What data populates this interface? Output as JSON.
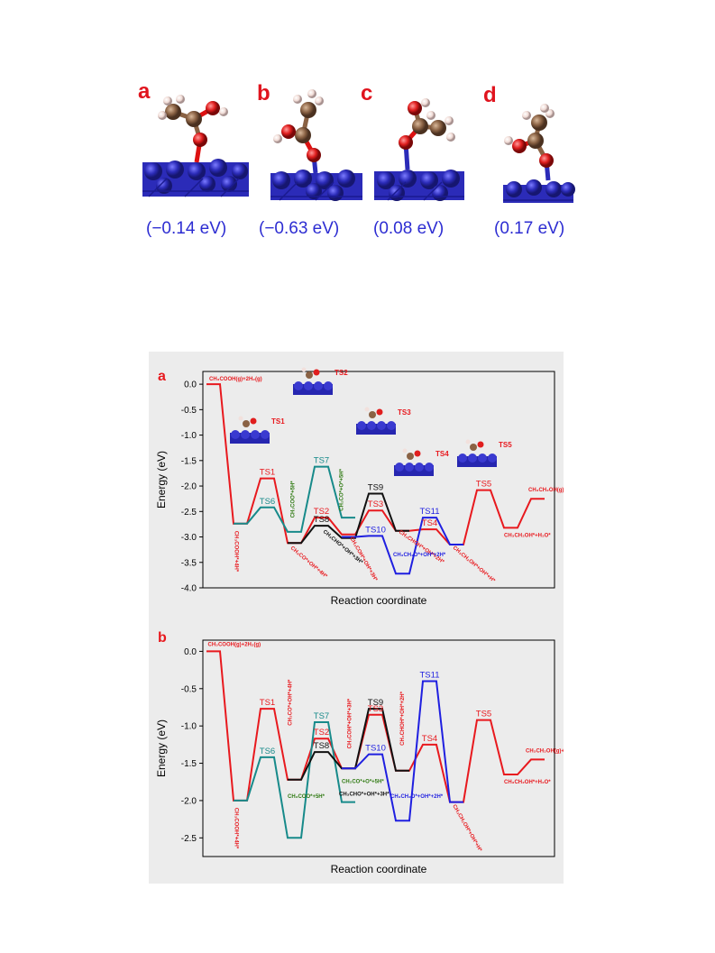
{
  "top_panels": [
    {
      "letter": "a",
      "energy": "(−0.14 eV)"
    },
    {
      "letter": "b",
      "energy": "(−0.63 eV)"
    },
    {
      "letter": "c",
      "energy": "(0.08 eV)"
    },
    {
      "letter": "d",
      "energy": "(0.17 eV)"
    }
  ],
  "colors": {
    "red": "#e8191e",
    "teal": "#178a8a",
    "black": "#111111",
    "blue": "#1f1fe0",
    "green": "#2f7a12",
    "bg": "#ececec"
  },
  "chart_data": [
    {
      "panel": "a",
      "type": "line",
      "xlabel": "Reaction coordinate",
      "ylabel": "Energy (eV)",
      "ylim": [
        -4.0,
        0.25
      ],
      "yticks": [
        "0.0",
        "-0.5",
        "-1.0",
        "-1.5",
        "-2.0",
        "-2.5",
        "-3.0",
        "-3.5",
        "-4.0"
      ],
      "series": [
        {
          "color": "red",
          "points": [
            [
              0,
              0
            ],
            [
              1,
              0
            ],
            [
              2,
              -2.74
            ],
            [
              3,
              -2.74
            ],
            [
              4,
              -1.85
            ],
            [
              5,
              -1.85
            ],
            [
              6,
              -3.12
            ],
            [
              7,
              -3.12
            ],
            [
              8,
              -2.62
            ],
            [
              9,
              -2.62
            ],
            [
              10,
              -2.95
            ],
            [
              11,
              -2.95
            ],
            [
              12,
              -2.48
            ],
            [
              13,
              -2.48
            ],
            [
              14,
              -2.88
            ],
            [
              15,
              -2.88
            ],
            [
              16,
              -2.85
            ],
            [
              17,
              -2.85
            ],
            [
              18,
              -3.15
            ],
            [
              19,
              -3.15
            ],
            [
              20,
              -2.08
            ],
            [
              21,
              -2.08
            ],
            [
              22,
              -2.82
            ],
            [
              23,
              -2.82
            ],
            [
              24,
              -2.25
            ],
            [
              25,
              -2.25
            ]
          ]
        },
        {
          "color": "teal",
          "points": [
            [
              2,
              -2.74
            ],
            [
              3,
              -2.74
            ],
            [
              4,
              -2.42
            ],
            [
              5,
              -2.42
            ],
            [
              6,
              -2.9
            ],
            [
              7,
              -2.9
            ],
            [
              8,
              -1.62
            ],
            [
              9,
              -1.62
            ],
            [
              10,
              -2.62
            ],
            [
              11,
              -2.62
            ]
          ]
        },
        {
          "color": "black",
          "points": [
            [
              6,
              -3.12
            ],
            [
              7,
              -3.12
            ],
            [
              8,
              -2.78
            ],
            [
              9,
              -2.78
            ],
            [
              10,
              -3.02
            ],
            [
              11,
              -3.02
            ],
            [
              12,
              -2.15
            ],
            [
              13,
              -2.15
            ],
            [
              14,
              -2.88
            ],
            [
              15,
              -2.88
            ]
          ]
        },
        {
          "color": "blue",
          "points": [
            [
              10,
              -3.0
            ],
            [
              11,
              -3.0
            ],
            [
              12,
              -2.98
            ],
            [
              13,
              -2.98
            ],
            [
              14,
              -3.72
            ],
            [
              15,
              -3.72
            ],
            [
              16,
              -2.62
            ],
            [
              17,
              -2.62
            ],
            [
              18,
              -3.15
            ],
            [
              19,
              -3.15
            ]
          ]
        }
      ],
      "labels": [
        {
          "text": "TS1",
          "color": "red",
          "x": 4.5,
          "y": -1.85
        },
        {
          "text": "TS6",
          "color": "teal",
          "x": 4.5,
          "y": -2.42
        },
        {
          "text": "TS7",
          "color": "teal",
          "x": 8.5,
          "y": -1.62
        },
        {
          "text": "TS2",
          "color": "red",
          "x": 8.5,
          "y": -2.62
        },
        {
          "text": "TS8",
          "color": "black",
          "x": 8.5,
          "y": -2.78
        },
        {
          "text": "TS9",
          "color": "black",
          "x": 12.5,
          "y": -2.15
        },
        {
          "text": "TS3",
          "color": "red",
          "x": 12.5,
          "y": -2.48
        },
        {
          "text": "TS10",
          "color": "blue",
          "x": 12.5,
          "y": -2.98
        },
        {
          "text": "TS11",
          "color": "blue",
          "x": 16.5,
          "y": -2.62
        },
        {
          "text": "TS4",
          "color": "red",
          "x": 16.5,
          "y": -2.85
        },
        {
          "text": "TS5",
          "color": "red",
          "x": 20.5,
          "y": -2.08
        }
      ],
      "species": [
        {
          "text": "CH₃COOH(g)+2H₂(g)",
          "color": "red"
        },
        {
          "text": "CH₃COOH*+4H*",
          "color": "red"
        },
        {
          "text": "CH₃CO*+OH*+4H*",
          "color": "red"
        },
        {
          "text": "CH₃COO*+5H*",
          "color": "green"
        },
        {
          "text": "CH₂CO*+O*+5H*",
          "color": "green"
        },
        {
          "text": "CH₃CHO*+OH*+3H*",
          "color": "black"
        },
        {
          "text": "CH₃COH*+OH*+3H*",
          "color": "red"
        },
        {
          "text": "CH₃CHOH*+OH*+2H*",
          "color": "red"
        },
        {
          "text": "CH₃CH₂O*+OH*+2H*",
          "color": "blue"
        },
        {
          "text": "CH₃CH₂OH*+OH*+H*",
          "color": "red"
        },
        {
          "text": "CH₃CH₂OH*+H₂O*",
          "color": "red"
        },
        {
          "text": "CH₃CH₂OH(g)+H₂O(g)",
          "color": "red"
        }
      ],
      "inset_labels": [
        "TS1",
        "TS2",
        "TS3",
        "TS4",
        "TS5"
      ]
    },
    {
      "panel": "b",
      "type": "line",
      "xlabel": "Reaction coordinate",
      "ylabel": "Energy (eV)",
      "ylim": [
        -2.75,
        0.15
      ],
      "yticks": [
        "0.0",
        "-0.5",
        "-1.0",
        "-1.5",
        "-2.0",
        "-2.5"
      ],
      "series": [
        {
          "color": "red",
          "points": [
            [
              0,
              0
            ],
            [
              1,
              0
            ],
            [
              2,
              -2.0
            ],
            [
              3,
              -2.0
            ],
            [
              4,
              -0.77
            ],
            [
              5,
              -0.77
            ],
            [
              6,
              -1.72
            ],
            [
              7,
              -1.72
            ],
            [
              8,
              -1.17
            ],
            [
              9,
              -1.17
            ],
            [
              10,
              -1.57
            ],
            [
              11,
              -1.57
            ],
            [
              12,
              -0.85
            ],
            [
              13,
              -0.85
            ],
            [
              14,
              -1.6
            ],
            [
              15,
              -1.6
            ],
            [
              16,
              -1.25
            ],
            [
              17,
              -1.25
            ],
            [
              18,
              -2.02
            ],
            [
              19,
              -2.02
            ],
            [
              20,
              -0.92
            ],
            [
              21,
              -0.92
            ],
            [
              22,
              -1.65
            ],
            [
              23,
              -1.65
            ],
            [
              24,
              -1.45
            ],
            [
              25,
              -1.45
            ]
          ]
        },
        {
          "color": "teal",
          "points": [
            [
              2,
              -2.0
            ],
            [
              3,
              -2.0
            ],
            [
              4,
              -1.42
            ],
            [
              5,
              -1.42
            ],
            [
              6,
              -2.5
            ],
            [
              7,
              -2.5
            ],
            [
              8,
              -0.95
            ],
            [
              9,
              -0.95
            ],
            [
              10,
              -2.02
            ],
            [
              11,
              -2.02
            ]
          ]
        },
        {
          "color": "black",
          "points": [
            [
              6,
              -1.72
            ],
            [
              7,
              -1.72
            ],
            [
              8,
              -1.35
            ],
            [
              9,
              -1.35
            ],
            [
              10,
              -1.57
            ],
            [
              11,
              -1.57
            ],
            [
              12,
              -0.77
            ],
            [
              13,
              -0.77
            ],
            [
              14,
              -1.6
            ],
            [
              15,
              -1.6
            ]
          ]
        },
        {
          "color": "blue",
          "points": [
            [
              10,
              -1.57
            ],
            [
              11,
              -1.57
            ],
            [
              12,
              -1.38
            ],
            [
              13,
              -1.38
            ],
            [
              14,
              -2.27
            ],
            [
              15,
              -2.27
            ],
            [
              16,
              -0.4
            ],
            [
              17,
              -0.4
            ],
            [
              18,
              -2.02
            ],
            [
              19,
              -2.02
            ]
          ]
        }
      ],
      "labels": [
        {
          "text": "TS1",
          "color": "red",
          "x": 4.5,
          "y": -0.77
        },
        {
          "text": "TS6",
          "color": "teal",
          "x": 4.5,
          "y": -1.42
        },
        {
          "text": "TS7",
          "color": "teal",
          "x": 8.5,
          "y": -0.95
        },
        {
          "text": "TS2",
          "color": "red",
          "x": 8.5,
          "y": -1.17
        },
        {
          "text": "TS8",
          "color": "black",
          "x": 8.5,
          "y": -1.35
        },
        {
          "text": "TS9",
          "color": "black",
          "x": 12.5,
          "y": -0.77
        },
        {
          "text": "TS3",
          "color": "red",
          "x": 12.5,
          "y": -0.85
        },
        {
          "text": "TS10",
          "color": "blue",
          "x": 12.5,
          "y": -1.38
        },
        {
          "text": "TS11",
          "color": "blue",
          "x": 16.5,
          "y": -0.4
        },
        {
          "text": "TS4",
          "color": "red",
          "x": 16.5,
          "y": -1.25
        },
        {
          "text": "TS5",
          "color": "red",
          "x": 20.5,
          "y": -0.92
        }
      ],
      "species": [
        {
          "text": "CH₃COOH(g)+2H₂(g)",
          "color": "red"
        },
        {
          "text": "CH₃COOH*+4H*",
          "color": "red"
        },
        {
          "text": "CH₃CO*+OH*+4H*",
          "color": "red"
        },
        {
          "text": "CH₃COO*+5H*",
          "color": "green"
        },
        {
          "text": "CH₂CO*+O*+5H*",
          "color": "green"
        },
        {
          "text": "CH₃CHO*+OH*+3H*",
          "color": "black"
        },
        {
          "text": "CH₃COH*+OH*+3H*",
          "color": "red"
        },
        {
          "text": "CH₃CHOH*+OH*+2H*",
          "color": "red"
        },
        {
          "text": "CH₃CH₂O*+OH*+2H*",
          "color": "blue"
        },
        {
          "text": "CH₃CH₂OH*+OH*+H*",
          "color": "red"
        },
        {
          "text": "CH₃CH₂OH*+H₂O*",
          "color": "red"
        },
        {
          "text": "CH₃CH₂OH(g)+H₂O(g)",
          "color": "red"
        }
      ]
    }
  ]
}
